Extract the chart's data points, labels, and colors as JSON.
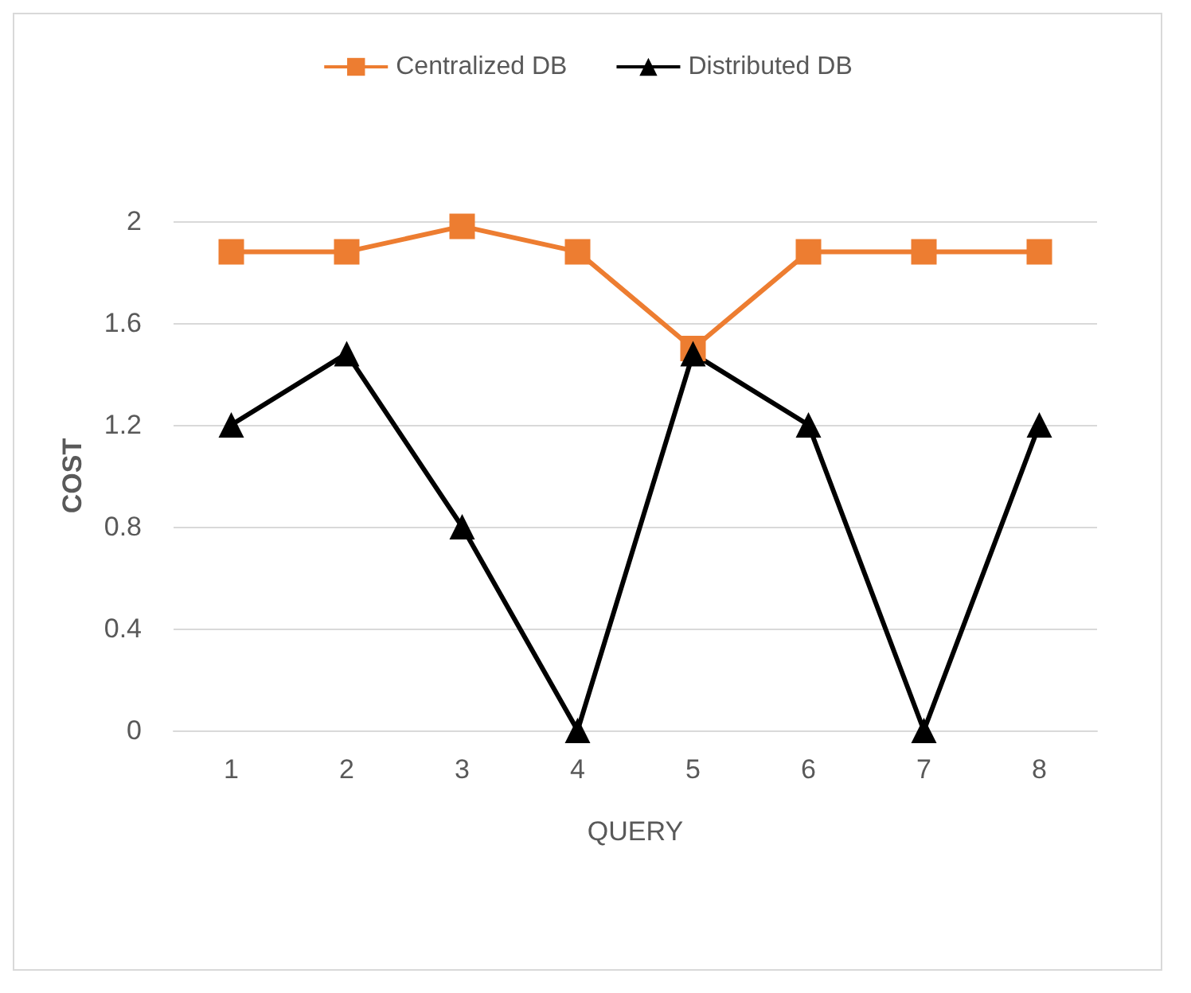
{
  "chart_data": {
    "type": "line",
    "xlabel": "QUERY",
    "ylabel": "COST",
    "categories": [
      "1",
      "2",
      "3",
      "4",
      "5",
      "6",
      "7",
      "8"
    ],
    "series": [
      {
        "name": "Centralized DB",
        "color": "#ed7d31",
        "marker": "square",
        "values": [
          1.88,
          1.88,
          1.98,
          1.88,
          1.5,
          1.88,
          1.88,
          1.88
        ]
      },
      {
        "name": "Distributed DB",
        "color": "#000000",
        "marker": "triangle",
        "values": [
          1.2,
          1.48,
          0.8,
          0,
          1.48,
          1.2,
          0,
          1.2
        ]
      }
    ],
    "ylim": [
      0,
      2
    ],
    "yticks": [
      0,
      0.4,
      0.8,
      1.2,
      1.6,
      2
    ],
    "grid": "y",
    "legend": "top"
  }
}
